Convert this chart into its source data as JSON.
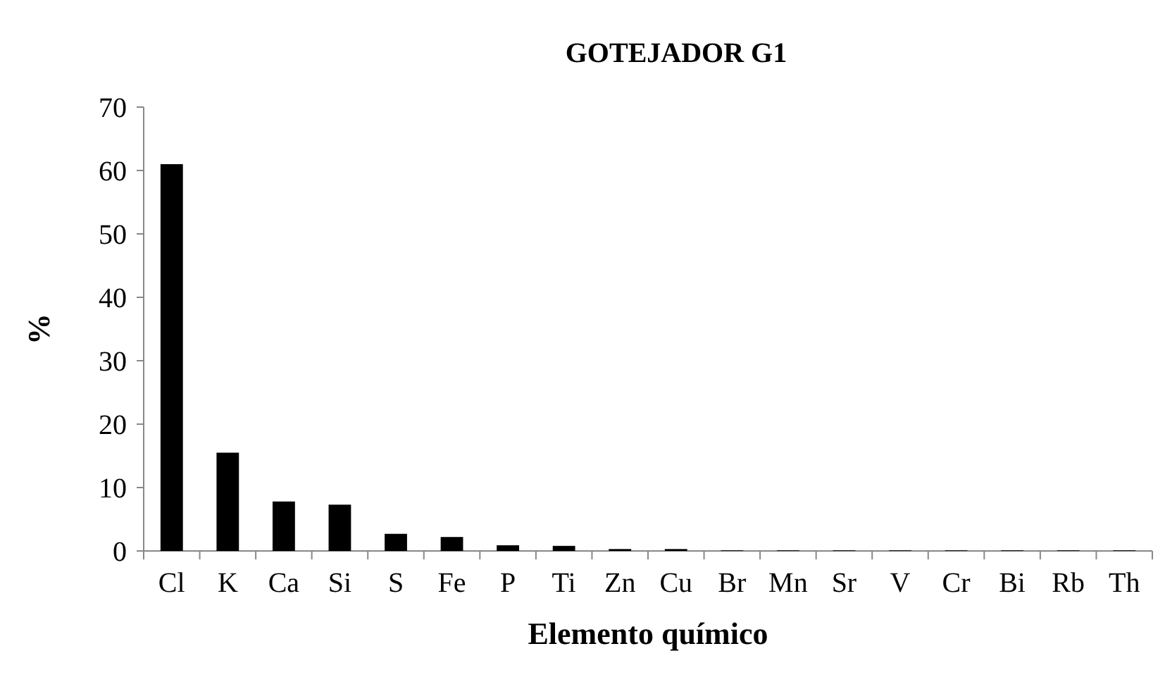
{
  "chart_data": {
    "type": "bar",
    "title": "GOTEJADOR G1",
    "xlabel": "Elemento químico",
    "ylabel": "%",
    "categories": [
      "Cl",
      "K",
      "Ca",
      "Si",
      "S",
      "Fe",
      "P",
      "Ti",
      "Zn",
      "Cu",
      "Br",
      "Mn",
      "Sr",
      "V",
      "Cr",
      "Bi",
      "Rb",
      "Th"
    ],
    "values": [
      61.0,
      15.5,
      7.8,
      7.3,
      2.7,
      2.2,
      0.9,
      0.8,
      0.3,
      0.3,
      0.1,
      0.1,
      0.1,
      0.1,
      0.1,
      0.1,
      0.1,
      0.1
    ],
    "color": "#000000",
    "ylim": [
      0,
      70
    ],
    "yticks": [
      0,
      10,
      20,
      30,
      40,
      50,
      60,
      70
    ],
    "grid": false
  }
}
